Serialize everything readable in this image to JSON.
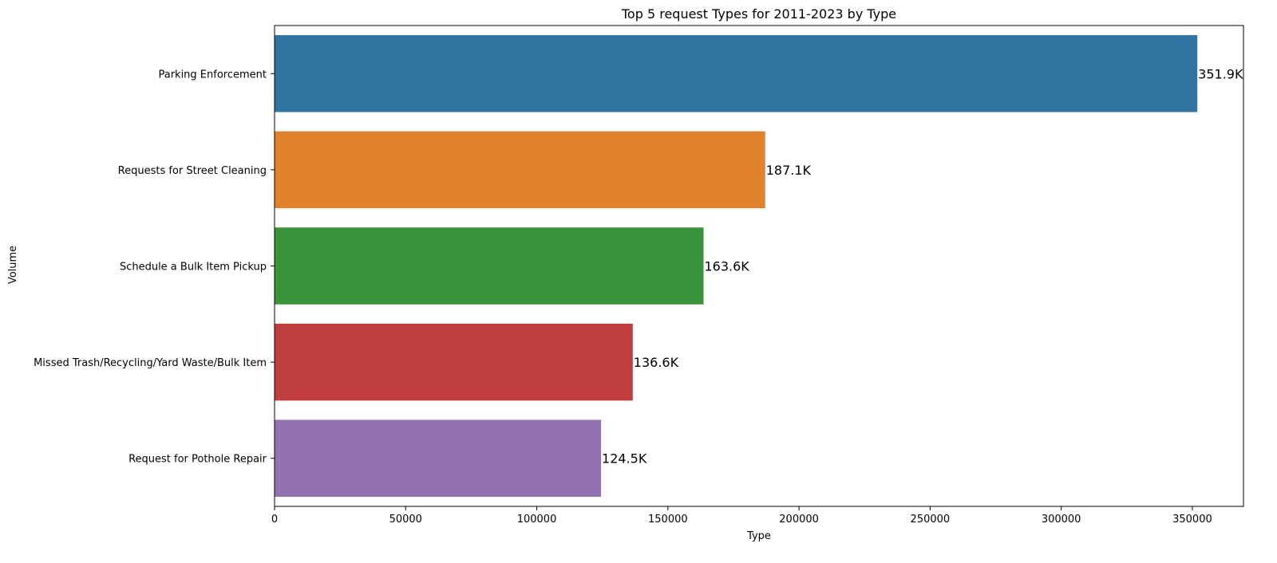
{
  "chart_data": {
    "type": "bar",
    "orientation": "horizontal",
    "title": "Top 5 request Types for 2011-2023 by Type",
    "xlabel": "Type",
    "ylabel": "Volume",
    "xlim": [
      0,
      369500
    ],
    "xticks": [
      0,
      50000,
      100000,
      150000,
      200000,
      250000,
      300000,
      350000
    ],
    "grid": false,
    "legend": "none",
    "categories": [
      "Parking Enforcement",
      "Requests for Street Cleaning",
      "Schedule a Bulk Item Pickup",
      "Missed Trash/Recycling/Yard Waste/Bulk Item",
      "Request for Pothole Repair"
    ],
    "values": [
      351900,
      187100,
      163600,
      136600,
      124500
    ],
    "data_labels": [
      "351.9K",
      "187.1K",
      "163.6K",
      "136.6K",
      "124.5K"
    ],
    "colors": [
      "#3274a1",
      "#e1812c",
      "#3a923a",
      "#c03d3e",
      "#9372b2"
    ]
  }
}
